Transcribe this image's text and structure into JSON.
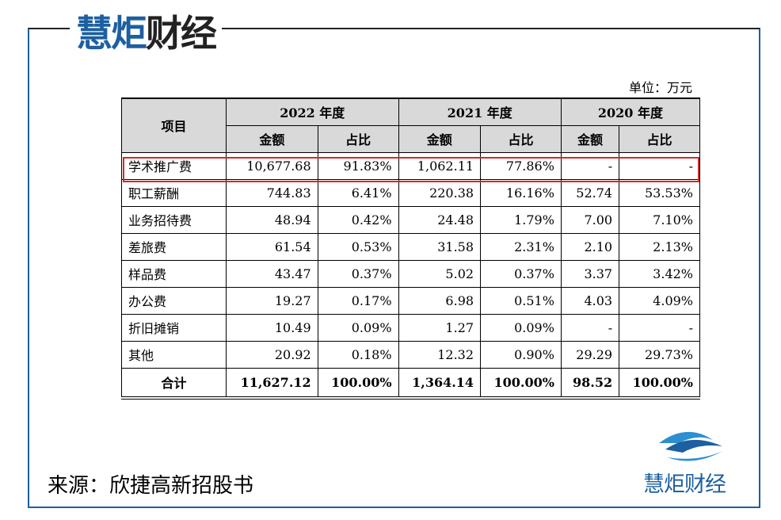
{
  "header": {
    "brand": [
      "慧炬",
      "财经"
    ]
  },
  "unit": "单位：万元",
  "table": {
    "corner": "项目",
    "years": [
      "2022 年度",
      "2021 年度",
      "2020 年度"
    ],
    "subheaders": [
      "金额",
      "占比",
      "金额",
      "占比",
      "金额",
      "占比"
    ],
    "rows": [
      [
        "学术推广费",
        "10,677.68",
        "91.83%",
        "1,062.11",
        "77.86%",
        "-",
        "-"
      ],
      [
        "职工薪酬",
        "744.83",
        "6.41%",
        "220.38",
        "16.16%",
        "52.74",
        "53.53%"
      ],
      [
        "业务招待费",
        "48.94",
        "0.42%",
        "24.48",
        "1.79%",
        "7.00",
        "7.10%"
      ],
      [
        "差旅费",
        "61.54",
        "0.53%",
        "31.58",
        "2.31%",
        "2.10",
        "2.13%"
      ],
      [
        "样品费",
        "43.47",
        "0.37%",
        "5.02",
        "0.37%",
        "3.37",
        "3.42%"
      ],
      [
        "办公费",
        "19.27",
        "0.17%",
        "6.98",
        "0.51%",
        "4.03",
        "4.09%"
      ],
      [
        "折旧摊销",
        "10.49",
        "0.09%",
        "1.27",
        "0.09%",
        "-",
        "-"
      ],
      [
        "其他",
        "20.92",
        "0.18%",
        "12.32",
        "0.90%",
        "29.29",
        "29.73%"
      ]
    ],
    "total": [
      "合计",
      "11,627.12",
      "100.00%",
      "1,364.14",
      "100.00%",
      "98.52",
      "100.00%"
    ]
  },
  "source": "来源：欣捷高新招股书",
  "footer": {
    "brand": "慧炬财经"
  }
}
